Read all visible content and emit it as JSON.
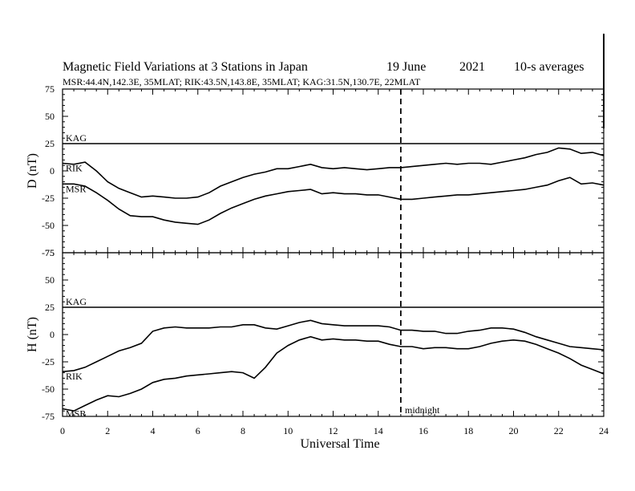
{
  "header": {
    "title": "Magnetic Field Variations at 3 Stations in Japan",
    "date_day": "19 June",
    "date_year": "2021",
    "averaging": "10-s averages",
    "stations": "MSR:44.4N,142.3E, 35MLAT;  RIK:43.5N,143.8E, 35MLAT;  KAG:31.5N,130.7E, 22MLAT"
  },
  "chart_data": {
    "type": "line",
    "xlabel": "Universal Time",
    "xlim": [
      0,
      24
    ],
    "xticks": [
      0,
      2,
      4,
      6,
      8,
      10,
      12,
      14,
      16,
      18,
      20,
      22,
      24
    ],
    "marker": {
      "x": 15,
      "label": "midnight",
      "style": "dashed"
    },
    "panels": [
      {
        "id": "D",
        "ylabel": "D (nT)",
        "ylim": [
          -75,
          75
        ],
        "yticks": [
          75,
          50,
          25,
          0,
          -25,
          -50,
          -75
        ],
        "series": [
          {
            "name": "KAG",
            "x": [
              0,
              24
            ],
            "y": [
              25,
              25
            ]
          },
          {
            "name": "RIK",
            "x": [
              0,
              0.5,
              1,
              1.5,
              2,
              2.5,
              3,
              3.5,
              4,
              4.5,
              5,
              5.5,
              6,
              6.5,
              7,
              7.5,
              8,
              8.5,
              9,
              9.5,
              10,
              10.5,
              11,
              11.5,
              12,
              12.5,
              13,
              13.5,
              14,
              14.5,
              15,
              15.5,
              16,
              16.5,
              17,
              17.5,
              18,
              18.5,
              19,
              19.5,
              20,
              20.5,
              21,
              21.5,
              22,
              22.5,
              23,
              23.5,
              24
            ],
            "y": [
              7,
              6,
              8,
              0,
              -10,
              -16,
              -20,
              -24,
              -23,
              -24,
              -25,
              -25,
              -24,
              -20,
              -14,
              -10,
              -6,
              -3,
              -1,
              2,
              2,
              4,
              6,
              3,
              2,
              3,
              2,
              1,
              2,
              3,
              3,
              4,
              5,
              6,
              7,
              6,
              7,
              7,
              6,
              8,
              10,
              12,
              15,
              17,
              21,
              20,
              16,
              17,
              14
            ]
          },
          {
            "name": "MSR",
            "x": [
              0,
              0.5,
              1,
              1.5,
              2,
              2.5,
              3,
              3.5,
              4,
              4.5,
              5,
              5.5,
              6,
              6.5,
              7,
              7.5,
              8,
              8.5,
              9,
              9.5,
              10,
              10.5,
              11,
              11.5,
              12,
              12.5,
              13,
              13.5,
              14,
              14.5,
              15,
              15.5,
              16,
              16.5,
              17,
              17.5,
              18,
              18.5,
              19,
              19.5,
              20,
              20.5,
              21,
              21.5,
              22,
              22.5,
              23,
              23.5,
              24
            ],
            "y": [
              -12,
              -12,
              -14,
              -20,
              -27,
              -35,
              -41,
              -42,
              -42,
              -45,
              -47,
              -48,
              -49,
              -45,
              -39,
              -34,
              -30,
              -26,
              -23,
              -21,
              -19,
              -18,
              -17,
              -21,
              -20,
              -21,
              -21,
              -22,
              -22,
              -24,
              -26,
              -26,
              -25,
              -24,
              -23,
              -22,
              -22,
              -21,
              -20,
              -19,
              -18,
              -17,
              -15,
              -13,
              -9,
              -6,
              -12,
              -11,
              -13
            ]
          }
        ]
      },
      {
        "id": "H",
        "ylabel": "H (nT)",
        "ylim": [
          -75,
          75
        ],
        "yticks": [
          75,
          50,
          25,
          0,
          -25,
          -50,
          -75
        ],
        "series": [
          {
            "name": "KAG",
            "x": [
              0,
              24
            ],
            "y": [
              25,
              25
            ]
          },
          {
            "name": "RIK",
            "x": [
              0,
              0.5,
              1,
              1.5,
              2,
              2.5,
              3,
              3.5,
              4,
              4.5,
              5,
              5.5,
              6,
              6.5,
              7,
              7.5,
              8,
              8.5,
              9,
              9.5,
              10,
              10.5,
              11,
              11.5,
              12,
              12.5,
              13,
              13.5,
              14,
              14.5,
              15,
              15.5,
              16,
              16.5,
              17,
              17.5,
              18,
              18.5,
              19,
              19.5,
              20,
              20.5,
              21,
              21.5,
              22,
              22.5,
              23,
              23.5,
              24
            ],
            "y": [
              -34,
              -33,
              -30,
              -25,
              -20,
              -15,
              -12,
              -8,
              3,
              6,
              7,
              6,
              6,
              6,
              7,
              7,
              9,
              9,
              6,
              5,
              8,
              11,
              13,
              10,
              9,
              8,
              8,
              8,
              8,
              7,
              4,
              4,
              3,
              3,
              1,
              1,
              3,
              4,
              6,
              6,
              5,
              2,
              -2,
              -5,
              -8,
              -11,
              -12,
              -13,
              -14
            ]
          },
          {
            "name": "MSR",
            "x": [
              0,
              0.5,
              1,
              1.5,
              2,
              2.5,
              3,
              3.5,
              4,
              4.5,
              5,
              5.5,
              6,
              6.5,
              7,
              7.5,
              8,
              8.5,
              9,
              9.5,
              10,
              10.5,
              11,
              11.5,
              12,
              12.5,
              13,
              13.5,
              14,
              14.5,
              15,
              15.5,
              16,
              16.5,
              17,
              17.5,
              18,
              18.5,
              19,
              19.5,
              20,
              20.5,
              21,
              21.5,
              22,
              22.5,
              23,
              23.5,
              24
            ],
            "y": [
              -68,
              -70,
              -65,
              -60,
              -56,
              -57,
              -54,
              -50,
              -44,
              -41,
              -40,
              -38,
              -37,
              -36,
              -35,
              -34,
              -35,
              -40,
              -30,
              -17,
              -10,
              -5,
              -2,
              -5,
              -4,
              -5,
              -5,
              -6,
              -6,
              -9,
              -11,
              -11,
              -13,
              -12,
              -12,
              -13,
              -13,
              -11,
              -8,
              -6,
              -5,
              -6,
              -9,
              -13,
              -17,
              -22,
              -28,
              -32,
              -36
            ]
          }
        ]
      }
    ]
  }
}
